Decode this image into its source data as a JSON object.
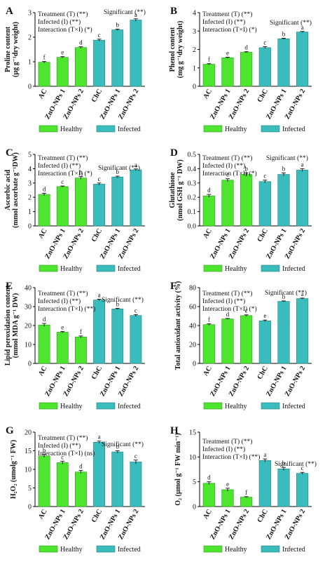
{
  "colors": {
    "healthy": "#4de52e",
    "infected": "#3bbcbc",
    "healthy_edge": "#2a9a18",
    "infected_edge": "#23807f"
  },
  "legend": {
    "healthy": "Healthy",
    "infected": "Infected"
  },
  "chart_data": [
    {
      "panel": "A",
      "type": "bar",
      "ylabel": [
        "Proline content",
        "(µg g⁻¹dry weight)"
      ],
      "ylim": [
        0,
        3
      ],
      "yticks": [
        0,
        1,
        2,
        3
      ],
      "categories": [
        "AC",
        "ZnO-NPs 1",
        "ZnO-NPs 2",
        "ChC",
        "ZnO-NPs 1",
        "ZnO-NPs 2"
      ],
      "groups": [
        "healthy",
        "healthy",
        "healthy",
        "infected",
        "infected",
        "infected"
      ],
      "values": [
        0.98,
        1.18,
        1.58,
        1.88,
        2.3,
        2.7
      ],
      "errors": [
        0.03,
        0.03,
        0.03,
        0.04,
        0.03,
        0.05
      ],
      "letters": [
        "f",
        "e",
        "d",
        "c",
        "b",
        "a"
      ],
      "stats": [
        "Treatment (T) (**)",
        "Infected  (I) (**)",
        "Interaction (T×I) (*)"
      ],
      "significance": "Significant (**)"
    },
    {
      "panel": "B",
      "type": "bar",
      "ylabel": [
        "Phenol content",
        "(mg g⁻¹dry weight)"
      ],
      "ylim": [
        0,
        4
      ],
      "yticks": [
        0,
        1,
        2,
        3,
        4
      ],
      "categories": [
        "AC",
        "ZnO-NPs 1",
        "ZnO-NPs 2",
        "ChC",
        "ZnO-NPs 1",
        "ZnO-NPs 2"
      ],
      "groups": [
        "healthy",
        "healthy",
        "healthy",
        "infected",
        "infected",
        "infected"
      ],
      "values": [
        1.2,
        1.55,
        1.85,
        2.1,
        2.58,
        2.95
      ],
      "errors": [
        0.03,
        0.03,
        0.03,
        0.05,
        0.03,
        0.03
      ],
      "letters": [
        "f",
        "e",
        "d",
        "c",
        "b",
        "a"
      ],
      "stats": [
        "Treatment (T) (**)",
        "Infected  (I) (**)",
        "Interaction (T×I) (*)"
      ],
      "significance": "Significant (**)"
    },
    {
      "panel": "C",
      "type": "bar",
      "ylabel": [
        "Ascorbic acid",
        "(mmol ascorbate g⁻¹DW)"
      ],
      "ylim": [
        0,
        5
      ],
      "yticks": [
        0,
        1,
        2,
        3,
        4,
        5
      ],
      "categories": [
        "AC",
        "ZnO-NPs 1",
        "ZnO-NPs 2",
        "ChC",
        "ZnO-NPs 1",
        "ZnO-NPs 2"
      ],
      "groups": [
        "healthy",
        "healthy",
        "healthy",
        "infected",
        "infected",
        "infected"
      ],
      "values": [
        2.2,
        2.75,
        3.35,
        2.92,
        3.42,
        3.92
      ],
      "errors": [
        0.08,
        0.04,
        0.1,
        0.08,
        0.06,
        0.06
      ],
      "letters": [
        "d",
        "c",
        "b",
        "c",
        "b",
        "a"
      ],
      "stats": [
        "Treatment (T) (**)",
        "Infected (I) (**)",
        "Interaction (T×I) (*)"
      ],
      "significance": "Significant (**)"
    },
    {
      "panel": "D",
      "type": "bar",
      "ylabel": [
        "Glutathione",
        "(nmol GSH g⁻¹ DW)"
      ],
      "ylim": [
        0,
        0.5
      ],
      "yticks": [
        0,
        0.1,
        0.2,
        0.3,
        0.4,
        0.5
      ],
      "ytick_labels": [
        "0.0",
        "0.1",
        "0.2",
        "0.3",
        "0.4",
        "0.5"
      ],
      "categories": [
        "AC",
        "ZnO-NPs 1",
        "ZnO-NPs 2",
        "ChC",
        "ZnO-NPs 1",
        "ZnO-NPs 2"
      ],
      "groups": [
        "healthy",
        "healthy",
        "healthy",
        "infected",
        "infected",
        "infected"
      ],
      "values": [
        0.21,
        0.32,
        0.36,
        0.31,
        0.36,
        0.39
      ],
      "errors": [
        0.01,
        0.01,
        0.01,
        0.01,
        0.01,
        0.01
      ],
      "letters": [
        "d",
        "c",
        "b",
        "c",
        "b",
        "a"
      ],
      "stats": [
        "Treatment (T) (**)",
        "Infected  (I) (**)",
        "Interaction (T×I) (*)"
      ],
      "significance": "Significant (**)"
    },
    {
      "panel": "E",
      "type": "bar",
      "ylabel": [
        "Lipid peroxidation content",
        "(mmol MDA g⁻¹ DW)"
      ],
      "ylim": [
        0,
        40
      ],
      "yticks": [
        0,
        10,
        20,
        30,
        40
      ],
      "categories": [
        "AC",
        "ZnO-NPs 1",
        "ZnO-NPs 2",
        "ChC",
        "ZnO-NPs 1",
        "ZnO-NPs 2"
      ],
      "groups": [
        "healthy",
        "healthy",
        "healthy",
        "infected",
        "infected",
        "infected"
      ],
      "values": [
        20.3,
        16.5,
        14.0,
        33.5,
        28.8,
        25.3
      ],
      "errors": [
        0.8,
        0.4,
        0.5,
        0.4,
        0.3,
        0.5
      ],
      "letters": [
        "d",
        "e",
        "f",
        "a",
        "b",
        "c"
      ],
      "stats": [
        "Treatment (T) (**)",
        "Infected  (I) (**)",
        "Interaction (T×I) (**)"
      ],
      "significance": "Significant (**)"
    },
    {
      "panel": "F",
      "type": "bar",
      "ylabel": [
        "Total antioxidant activity (%)"
      ],
      "ylim": [
        0,
        80
      ],
      "yticks": [
        0,
        20,
        40,
        60,
        80
      ],
      "categories": [
        "AC",
        "ZnO-NPs 1",
        "ZnO-NPs 2",
        "ChC",
        "ZnO-NPs 1",
        "ZnO-NPs 2"
      ],
      "groups": [
        "healthy",
        "healthy",
        "healthy",
        "infected",
        "infected",
        "infected"
      ],
      "values": [
        41.0,
        47.0,
        50.5,
        45.0,
        65.5,
        68.5
      ],
      "errors": [
        0.8,
        0.5,
        0.8,
        0.8,
        0.5,
        0.5
      ],
      "letters": [
        "f",
        "d",
        "c",
        "e",
        "b",
        "a"
      ],
      "stats": [
        "Treatment (T) (**)",
        "Infected (I) (**)",
        "Interaction (T×I) (*)"
      ],
      "significance": "Significant (**)"
    },
    {
      "panel": "G",
      "type": "bar",
      "ylabel": [
        "H₂O₂ (umolg⁻¹ FW)"
      ],
      "ylim": [
        0,
        20
      ],
      "yticks": [
        0,
        5,
        10,
        15,
        20
      ],
      "categories": [
        "AC",
        "ZnO-NPs 1",
        "ZnO-NPs 2",
        "ChC",
        "ZnO-NPs 1",
        "ZnO-NPs 2"
      ],
      "groups": [
        "healthy",
        "healthy",
        "healthy",
        "infected",
        "infected",
        "infected"
      ],
      "values": [
        13.6,
        11.8,
        9.3,
        17.3,
        14.7,
        12.0
      ],
      "errors": [
        0.4,
        0.4,
        0.4,
        0.3,
        0.3,
        0.5
      ],
      "letters": [
        "b",
        "c",
        "d",
        "a",
        "b",
        "c"
      ],
      "stats": [
        "Treatment (T) (**)",
        "Infected  (I) (**)",
        "Interaction (T×I) (ns)"
      ],
      "significance": "Significant (**)"
    },
    {
      "panel": "H",
      "type": "bar",
      "ylabel": [
        "O₂ (µmol g⁻¹ FW min⁻¹)"
      ],
      "ylim": [
        0,
        15
      ],
      "yticks": [
        0,
        5,
        10,
        15
      ],
      "categories": [
        "AC",
        "ZnO-NPs 1",
        "ZnO-NPs 2",
        "ChC",
        "ZnO-NPs 1",
        "ZnO-NPs 2"
      ],
      "groups": [
        "healthy",
        "healthy",
        "healthy",
        "infected",
        "infected",
        "infected"
      ],
      "values": [
        4.7,
        3.4,
        1.9,
        9.3,
        7.6,
        6.7
      ],
      "errors": [
        0.3,
        0.3,
        0.1,
        0.3,
        0.3,
        0.2
      ],
      "letters": [
        "d",
        "e",
        "f",
        "a",
        "b",
        "c"
      ],
      "stats": [
        "Treatment (T) (**)",
        "Infected (I) (**)",
        "Interaction (T×I) (**)"
      ],
      "significance": "Significant (**)"
    }
  ]
}
